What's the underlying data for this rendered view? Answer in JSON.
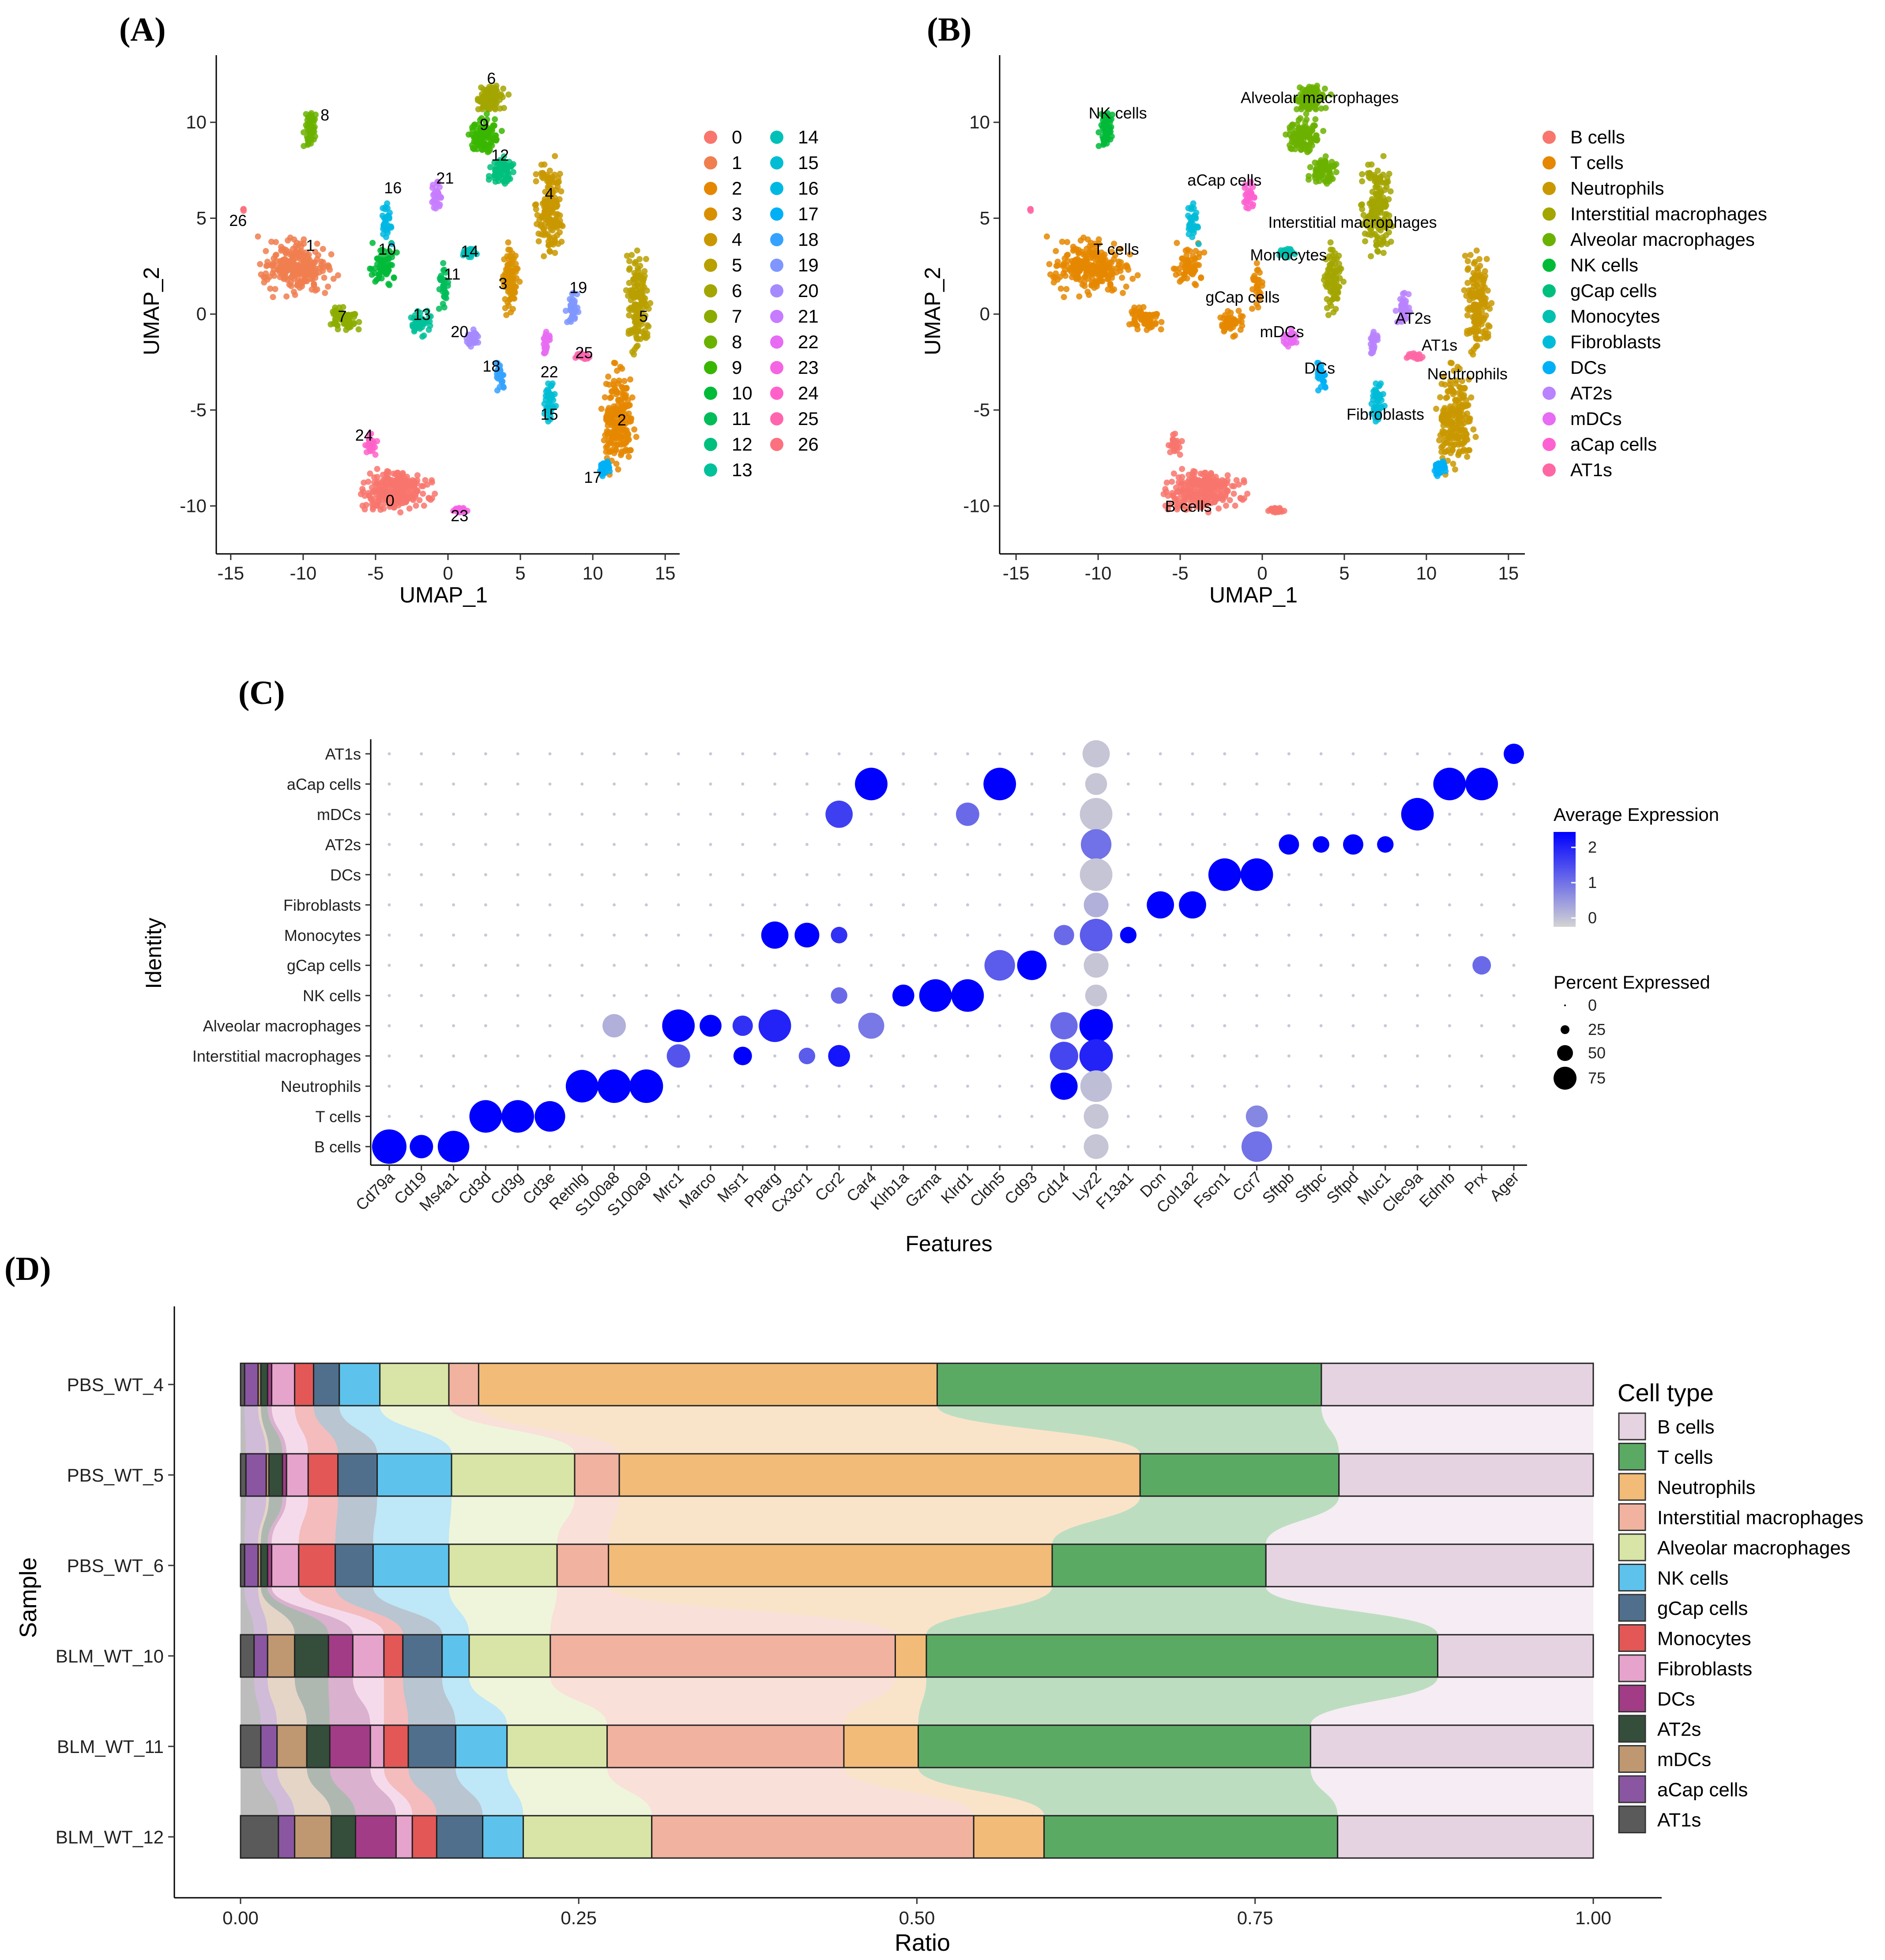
{
  "chart_data": [
    {
      "panel": "(A)",
      "type": "scatter",
      "xlabel": "UMAP_1",
      "ylabel": "UMAP_2",
      "xlim": [
        -16,
        16
      ],
      "ylim": [
        -12.5,
        13.5
      ],
      "xticks": [
        -15,
        -10,
        -5,
        0,
        5,
        10,
        15
      ],
      "yticks": [
        -10,
        -5,
        0,
        5,
        10
      ],
      "legend": [
        "0",
        "1",
        "2",
        "3",
        "4",
        "5",
        "6",
        "7",
        "8",
        "9",
        "10",
        "11",
        "12",
        "13",
        "14",
        "15",
        "16",
        "17",
        "18",
        "19",
        "20",
        "21",
        "22",
        "23",
        "24",
        "25",
        "26"
      ],
      "colors": [
        "#F8766D",
        "#F07E4F",
        "#E58700",
        "#D89000",
        "#C99800",
        "#B8A000",
        "#A3A500",
        "#8CAB00",
        "#6BB100",
        "#39B600",
        "#00BA38",
        "#00BC59",
        "#00BF7D",
        "#00C19A",
        "#00C0B8",
        "#00BDD4",
        "#00B9E3",
        "#00B0F6",
        "#35A2FF",
        "#7F96FF",
        "#A58AFF",
        "#C77CFF",
        "#E76BF3",
        "#F564E3",
        "#FF61C9",
        "#FF65AE",
        "#FC717F"
      ],
      "cluster_labels": [
        {
          "label": "0",
          "x": -4,
          "y": -10
        },
        {
          "label": "1",
          "x": -9.5,
          "y": 3.3
        },
        {
          "label": "2",
          "x": 12,
          "y": -5.8
        },
        {
          "label": "3",
          "x": 3.8,
          "y": 1.3
        },
        {
          "label": "4",
          "x": 7,
          "y": 6
        },
        {
          "label": "5",
          "x": 13.5,
          "y": -0.4
        },
        {
          "label": "6",
          "x": 3,
          "y": 12
        },
        {
          "label": "7",
          "x": -7.3,
          "y": -0.4
        },
        {
          "label": "8",
          "x": -8.5,
          "y": 10.1
        },
        {
          "label": "9",
          "x": 2.5,
          "y": 9.6
        },
        {
          "label": "10",
          "x": -4.2,
          "y": 3.1
        },
        {
          "label": "11",
          "x": 0.3,
          "y": 1.8
        },
        {
          "label": "12",
          "x": 3.6,
          "y": 8
        },
        {
          "label": "13",
          "x": -1.8,
          "y": -0.3
        },
        {
          "label": "14",
          "x": 1.5,
          "y": 3
        },
        {
          "label": "15",
          "x": 7,
          "y": -5.5
        },
        {
          "label": "16",
          "x": -3.8,
          "y": 6.3
        },
        {
          "label": "17",
          "x": 10,
          "y": -8.8
        },
        {
          "label": "18",
          "x": 3,
          "y": -3
        },
        {
          "label": "19",
          "x": 9,
          "y": 1.1
        },
        {
          "label": "20",
          "x": 0.8,
          "y": -1.2
        },
        {
          "label": "21",
          "x": -0.2,
          "y": 6.8
        },
        {
          "label": "22",
          "x": 7,
          "y": -3.3
        },
        {
          "label": "23",
          "x": 0.8,
          "y": -10.8
        },
        {
          "label": "24",
          "x": -5.8,
          "y": -6.6
        },
        {
          "label": "25",
          "x": 9.4,
          "y": -2.3
        },
        {
          "label": "26",
          "x": -14.5,
          "y": 4.6
        }
      ]
    },
    {
      "panel": "(B)",
      "type": "scatter",
      "xlabel": "UMAP_1",
      "ylabel": "UMAP_2",
      "xlim": [
        -16,
        16
      ],
      "ylim": [
        -12.5,
        13.5
      ],
      "xticks": [
        -15,
        -10,
        -5,
        0,
        5,
        10,
        15
      ],
      "yticks": [
        -10,
        -5,
        0,
        5,
        10
      ],
      "legend": [
        "B cells",
        "T cells",
        "Neutrophils",
        "Interstitial macrophages",
        "Alveolar macrophages",
        "NK cells",
        "gCap cells",
        "Monocytes",
        "Fibroblasts",
        "DCs",
        "AT2s",
        "mDCs",
        "aCap cells",
        "AT1s"
      ],
      "colors": [
        "#F8766D",
        "#E58700",
        "#C99800",
        "#A3A500",
        "#6BB100",
        "#00BA38",
        "#00BF7D",
        "#00C0AF",
        "#00BCD8",
        "#00B0F6",
        "#B983FF",
        "#E76BF3",
        "#FD61D1",
        "#FF67A4"
      ],
      "cluster_labels": [
        {
          "label": "NK cells",
          "x": -8.8,
          "y": 10.2
        },
        {
          "label": "Alveolar macrophages",
          "x": 3.5,
          "y": 11
        },
        {
          "label": "aCap cells",
          "x": -2.3,
          "y": 6.7
        },
        {
          "label": "Interstitial macrophages",
          "x": 5.5,
          "y": 4.5
        },
        {
          "label": "T cells",
          "x": -8.9,
          "y": 3.1
        },
        {
          "label": "Monocytes",
          "x": 1.6,
          "y": 2.8
        },
        {
          "label": "gCap cells",
          "x": -1.2,
          "y": 0.6
        },
        {
          "label": "mDCs",
          "x": 1.2,
          "y": -1.2
        },
        {
          "label": "AT2s",
          "x": 9.2,
          "y": -0.5
        },
        {
          "label": "AT1s",
          "x": 10.8,
          "y": -1.9
        },
        {
          "label": "DCs",
          "x": 3.5,
          "y": -3.1
        },
        {
          "label": "Neutrophils",
          "x": 12.5,
          "y": -3.4
        },
        {
          "label": "Fibroblasts",
          "x": 7.5,
          "y": -5.5
        },
        {
          "label": "B cells",
          "x": -4.5,
          "y": -10.3
        }
      ]
    },
    {
      "panel": "(C)",
      "type": "scatter",
      "subtype": "dotplot",
      "xlabel": "Features",
      "ylabel": "Identity",
      "features": [
        "Cd79a",
        "Cd19",
        "Ms4a1",
        "Cd3d",
        "Cd3g",
        "Cd3e",
        "Retnlg",
        "S100a8",
        "S100a9",
        "Mrc1",
        "Marco",
        "Msr1",
        "Pparg",
        "Cx3cr1",
        "Ccr2",
        "Car4",
        "Klrb1a",
        "Gzma",
        "Klrd1",
        "Cldn5",
        "Cd93",
        "Cd14",
        "Lyz2",
        "F13a1",
        "Dcn",
        "Col1a2",
        "Fscn1",
        "Ccr7",
        "Sftpb",
        "Sftpc",
        "Sftpd",
        "Muc1",
        "Clec9a",
        "Ednrb",
        "Prx",
        "Ager"
      ],
      "identities": [
        "AT1s",
        "aCap cells",
        "mDCs",
        "AT2s",
        "DCs",
        "Fibroblasts",
        "Monocytes",
        "gCap cells",
        "NK cells",
        "Alveolar macrophages",
        "Interstitial macrophages",
        "Neutrophils",
        "T cells",
        "B cells"
      ],
      "color_legend_title": "Average Expression",
      "color_ticks": [
        "2",
        "1",
        "0"
      ],
      "size_legend_title": "Percent Expressed",
      "size_legend_values": [
        "0",
        "25",
        "50",
        "75"
      ],
      "points": [
        {
          "f": "Ager",
          "id": "AT1s",
          "pct": 25,
          "expr": 2.5
        },
        {
          "f": "Lyz2",
          "id": "AT1s",
          "pct": 50,
          "expr": -0.3
        },
        {
          "f": "Car4",
          "id": "aCap cells",
          "pct": 75,
          "expr": 2.5
        },
        {
          "f": "Cldn5",
          "id": "aCap cells",
          "pct": 75,
          "expr": 2.5
        },
        {
          "f": "Ednrb",
          "id": "aCap cells",
          "pct": 75,
          "expr": 2.5
        },
        {
          "f": "Prx",
          "id": "aCap cells",
          "pct": 75,
          "expr": 2.5
        },
        {
          "f": "Lyz2",
          "id": "aCap cells",
          "pct": 30,
          "expr": -0.3
        },
        {
          "f": "Ccr2",
          "id": "mDCs",
          "pct": 50,
          "expr": 1.6
        },
        {
          "f": "Klrd1",
          "id": "mDCs",
          "pct": 35,
          "expr": 1.0
        },
        {
          "f": "Lyz2",
          "id": "mDCs",
          "pct": 75,
          "expr": -0.3
        },
        {
          "f": "Clec9a",
          "id": "mDCs",
          "pct": 75,
          "expr": 2.5
        },
        {
          "f": "Lyz2",
          "id": "AT2s",
          "pct": 65,
          "expr": 0.9
        },
        {
          "f": "Sftpb",
          "id": "AT2s",
          "pct": 25,
          "expr": 2.5
        },
        {
          "f": "Sftpc",
          "id": "AT2s",
          "pct": 15,
          "expr": 2.5
        },
        {
          "f": "Sftpd",
          "id": "AT2s",
          "pct": 25,
          "expr": 2.5
        },
        {
          "f": "Muc1",
          "id": "AT2s",
          "pct": 15,
          "expr": 2.5
        },
        {
          "f": "Lyz2",
          "id": "DCs",
          "pct": 75,
          "expr": -0.3
        },
        {
          "f": "Fscn1",
          "id": "DCs",
          "pct": 75,
          "expr": 2.5
        },
        {
          "f": "Ccr7",
          "id": "DCs",
          "pct": 75,
          "expr": 2.5
        },
        {
          "f": "Dcn",
          "id": "Fibroblasts",
          "pct": 50,
          "expr": 2.5
        },
        {
          "f": "Col1a2",
          "id": "Fibroblasts",
          "pct": 50,
          "expr": 2.5
        },
        {
          "f": "Lyz2",
          "id": "Fibroblasts",
          "pct": 40,
          "expr": 0.0
        },
        {
          "f": "Pparg",
          "id": "Monocytes",
          "pct": 50,
          "expr": 2.5
        },
        {
          "f": "Cx3cr1",
          "id": "Monocytes",
          "pct": 40,
          "expr": 2.5
        },
        {
          "f": "Ccr2",
          "id": "Monocytes",
          "pct": 15,
          "expr": 1.8
        },
        {
          "f": "Lyz2",
          "id": "Monocytes",
          "pct": 75,
          "expr": 1.2
        },
        {
          "f": "F13a1",
          "id": "Monocytes",
          "pct": 15,
          "expr": 2.5
        },
        {
          "f": "Cd14",
          "id": "Monocytes",
          "pct": 25,
          "expr": 1.0
        },
        {
          "f": "Cldn5",
          "id": "gCap cells",
          "pct": 65,
          "expr": 1.2
        },
        {
          "f": "Cd93",
          "id": "gCap cells",
          "pct": 60,
          "expr": 2.5
        },
        {
          "f": "Lyz2",
          "id": "gCap cells",
          "pct": 40,
          "expr": -0.3
        },
        {
          "f": "Prx",
          "id": "gCap cells",
          "pct": 20,
          "expr": 1.0
        },
        {
          "f": "Klrb1a",
          "id": "NK cells",
          "pct": 30,
          "expr": 2.5
        },
        {
          "f": "Gzma",
          "id": "NK cells",
          "pct": 75,
          "expr": 2.5
        },
        {
          "f": "Klrd1",
          "id": "NK cells",
          "pct": 75,
          "expr": 2.5
        },
        {
          "f": "Lyz2",
          "id": "NK cells",
          "pct": 30,
          "expr": -0.3
        },
        {
          "f": "Ccr2",
          "id": "NK cells",
          "pct": 15,
          "expr": 1.0
        },
        {
          "f": "Mrc1",
          "id": "Alveolar macrophages",
          "pct": 75,
          "expr": 2.5
        },
        {
          "f": "Marco",
          "id": "Alveolar macrophages",
          "pct": 30,
          "expr": 2.5
        },
        {
          "f": "Msr1",
          "id": "Alveolar macrophages",
          "pct": 25,
          "expr": 1.8
        },
        {
          "f": "Pparg",
          "id": "Alveolar macrophages",
          "pct": 75,
          "expr": 2.0
        },
        {
          "f": "S100a8",
          "id": "Alveolar macrophages",
          "pct": 35,
          "expr": 0.0
        },
        {
          "f": "Car4",
          "id": "Alveolar macrophages",
          "pct": 45,
          "expr": 0.8
        },
        {
          "f": "Cd14",
          "id": "Alveolar macrophages",
          "pct": 50,
          "expr": 1.0
        },
        {
          "f": "Lyz2",
          "id": "Alveolar macrophages",
          "pct": 80,
          "expr": 2.5
        },
        {
          "f": "Mrc1",
          "id": "Interstitial macrophages",
          "pct": 35,
          "expr": 1.3
        },
        {
          "f": "Msr1",
          "id": "Interstitial macrophages",
          "pct": 20,
          "expr": 2.5
        },
        {
          "f": "Ccr2",
          "id": "Interstitial macrophages",
          "pct": 30,
          "expr": 2.2
        },
        {
          "f": "Cx3cr1",
          "id": "Interstitial macrophages",
          "pct": 15,
          "expr": 1.2
        },
        {
          "f": "Cd14",
          "id": "Interstitial macrophages",
          "pct": 55,
          "expr": 1.5
        },
        {
          "f": "Lyz2",
          "id": "Interstitial macrophages",
          "pct": 80,
          "expr": 2.0
        },
        {
          "f": "Retnlg",
          "id": "Neutrophils",
          "pct": 75,
          "expr": 2.5
        },
        {
          "f": "S100a8",
          "id": "Neutrophils",
          "pct": 80,
          "expr": 2.5
        },
        {
          "f": "S100a9",
          "id": "Neutrophils",
          "pct": 80,
          "expr": 2.5
        },
        {
          "f": "Cd14",
          "id": "Neutrophils",
          "pct": 50,
          "expr": 2.5
        },
        {
          "f": "Lyz2",
          "id": "Neutrophils",
          "pct": 70,
          "expr": -0.2
        },
        {
          "f": "Cd3d",
          "id": "T cells",
          "pct": 75,
          "expr": 2.5
        },
        {
          "f": "Cd3g",
          "id": "T cells",
          "pct": 75,
          "expr": 2.5
        },
        {
          "f": "Cd3e",
          "id": "T cells",
          "pct": 65,
          "expr": 2.5
        },
        {
          "f": "Lyz2",
          "id": "T cells",
          "pct": 40,
          "expr": -0.3
        },
        {
          "f": "Ccr7",
          "id": "T cells",
          "pct": 30,
          "expr": 0.6
        },
        {
          "f": "Cd79a",
          "id": "B cells",
          "pct": 85,
          "expr": 2.5
        },
        {
          "f": "Cd19",
          "id": "B cells",
          "pct": 35,
          "expr": 2.5
        },
        {
          "f": "Ms4a1",
          "id": "B cells",
          "pct": 70,
          "expr": 2.5
        },
        {
          "f": "Lyz2",
          "id": "B cells",
          "pct": 40,
          "expr": -0.3
        },
        {
          "f": "Ccr7",
          "id": "B cells",
          "pct": 65,
          "expr": 0.9
        }
      ]
    },
    {
      "panel": "(D)",
      "type": "bar",
      "subtype": "stacked-horizontal",
      "xlabel": "Ratio",
      "ylabel": "Sample",
      "xlim": [
        0,
        1
      ],
      "xticks": [
        "0.00",
        "0.25",
        "0.50",
        "0.75",
        "1.00"
      ],
      "legend_title": "Cell type",
      "categories": [
        "PBS_WT_4",
        "PBS_WT_5",
        "PBS_WT_6",
        "BLM_WT_10",
        "BLM_WT_11",
        "BLM_WT_12"
      ],
      "stack_order": [
        "AT1s",
        "aCap cells",
        "mDCs",
        "AT2s",
        "DCs",
        "Fibroblasts",
        "Monocytes",
        "gCap cells",
        "NK cells",
        "Alveolar macrophages",
        "Interstitial macrophages",
        "Neutrophils",
        "T cells",
        "B cells"
      ],
      "legend": [
        "B cells",
        "T cells",
        "Neutrophils",
        "Interstitial macrophages",
        "Alveolar macrophages",
        "NK cells",
        "gCap cells",
        "Monocytes",
        "Fibroblasts",
        "DCs",
        "AT2s",
        "mDCs",
        "aCap cells",
        "AT1s"
      ],
      "colors": {
        "B cells": "#E6D3E1",
        "T cells": "#5BAA64",
        "Neutrophils": "#F2BB77",
        "Interstitial macrophages": "#F1B2A0",
        "Alveolar macrophages": "#D8E5A6",
        "NK cells": "#5DC3EC",
        "gCap cells": "#506F8C",
        "Monocytes": "#E35757",
        "Fibroblasts": "#E6A3CC",
        "DCs": "#A23C86",
        "AT2s": "#344E3B",
        "mDCs": "#BF9770",
        "aCap cells": "#8A56A1",
        "AT1s": "#5A5A5A"
      },
      "series": [
        {
          "name": "AT1s",
          "values": [
            0.003,
            0.004,
            0.003,
            0.01,
            0.015,
            0.028
          ]
        },
        {
          "name": "aCap cells",
          "values": [
            0.01,
            0.015,
            0.01,
            0.01,
            0.012,
            0.012
          ]
        },
        {
          "name": "mDCs",
          "values": [
            0.002,
            0.002,
            0.002,
            0.02,
            0.022,
            0.027
          ]
        },
        {
          "name": "AT2s",
          "values": [
            0.005,
            0.01,
            0.005,
            0.025,
            0.017,
            0.018
          ]
        },
        {
          "name": "DCs",
          "values": [
            0.003,
            0.003,
            0.003,
            0.018,
            0.03,
            0.03
          ]
        },
        {
          "name": "Fibroblasts",
          "values": [
            0.017,
            0.016,
            0.02,
            0.023,
            0.01,
            0.012
          ]
        },
        {
          "name": "Monocytes",
          "values": [
            0.014,
            0.022,
            0.027,
            0.014,
            0.018,
            0.018
          ]
        },
        {
          "name": "gCap cells",
          "values": [
            0.019,
            0.029,
            0.028,
            0.029,
            0.035,
            0.034
          ]
        },
        {
          "name": "NK cells",
          "values": [
            0.03,
            0.055,
            0.056,
            0.02,
            0.038,
            0.03
          ]
        },
        {
          "name": "Alveolar macrophages",
          "values": [
            0.051,
            0.091,
            0.08,
            0.06,
            0.074,
            0.095
          ]
        },
        {
          "name": "Interstitial macrophages",
          "values": [
            0.022,
            0.033,
            0.038,
            0.255,
            0.175,
            0.238
          ]
        },
        {
          "name": "Neutrophils",
          "values": [
            0.339,
            0.385,
            0.328,
            0.023,
            0.055,
            0.052
          ]
        },
        {
          "name": "T cells",
          "values": [
            0.284,
            0.147,
            0.158,
            0.378,
            0.29,
            0.217
          ]
        },
        {
          "name": "B cells",
          "values": [
            0.201,
            0.188,
            0.242,
            0.115,
            0.209,
            0.189
          ]
        }
      ]
    }
  ]
}
